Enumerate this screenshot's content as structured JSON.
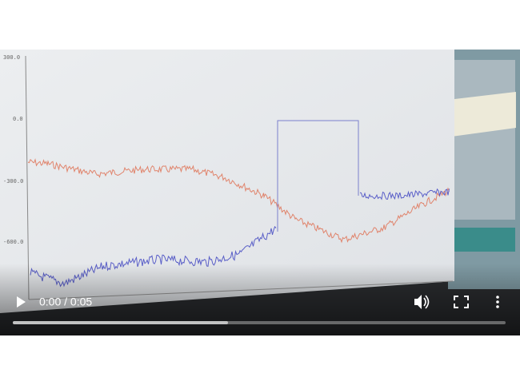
{
  "player": {
    "time": "0:00 / 0:05"
  },
  "frame": {
    "y_axis_labels": [
      "300.0",
      "0.0",
      "-300.0",
      "-600.0"
    ]
  }
}
